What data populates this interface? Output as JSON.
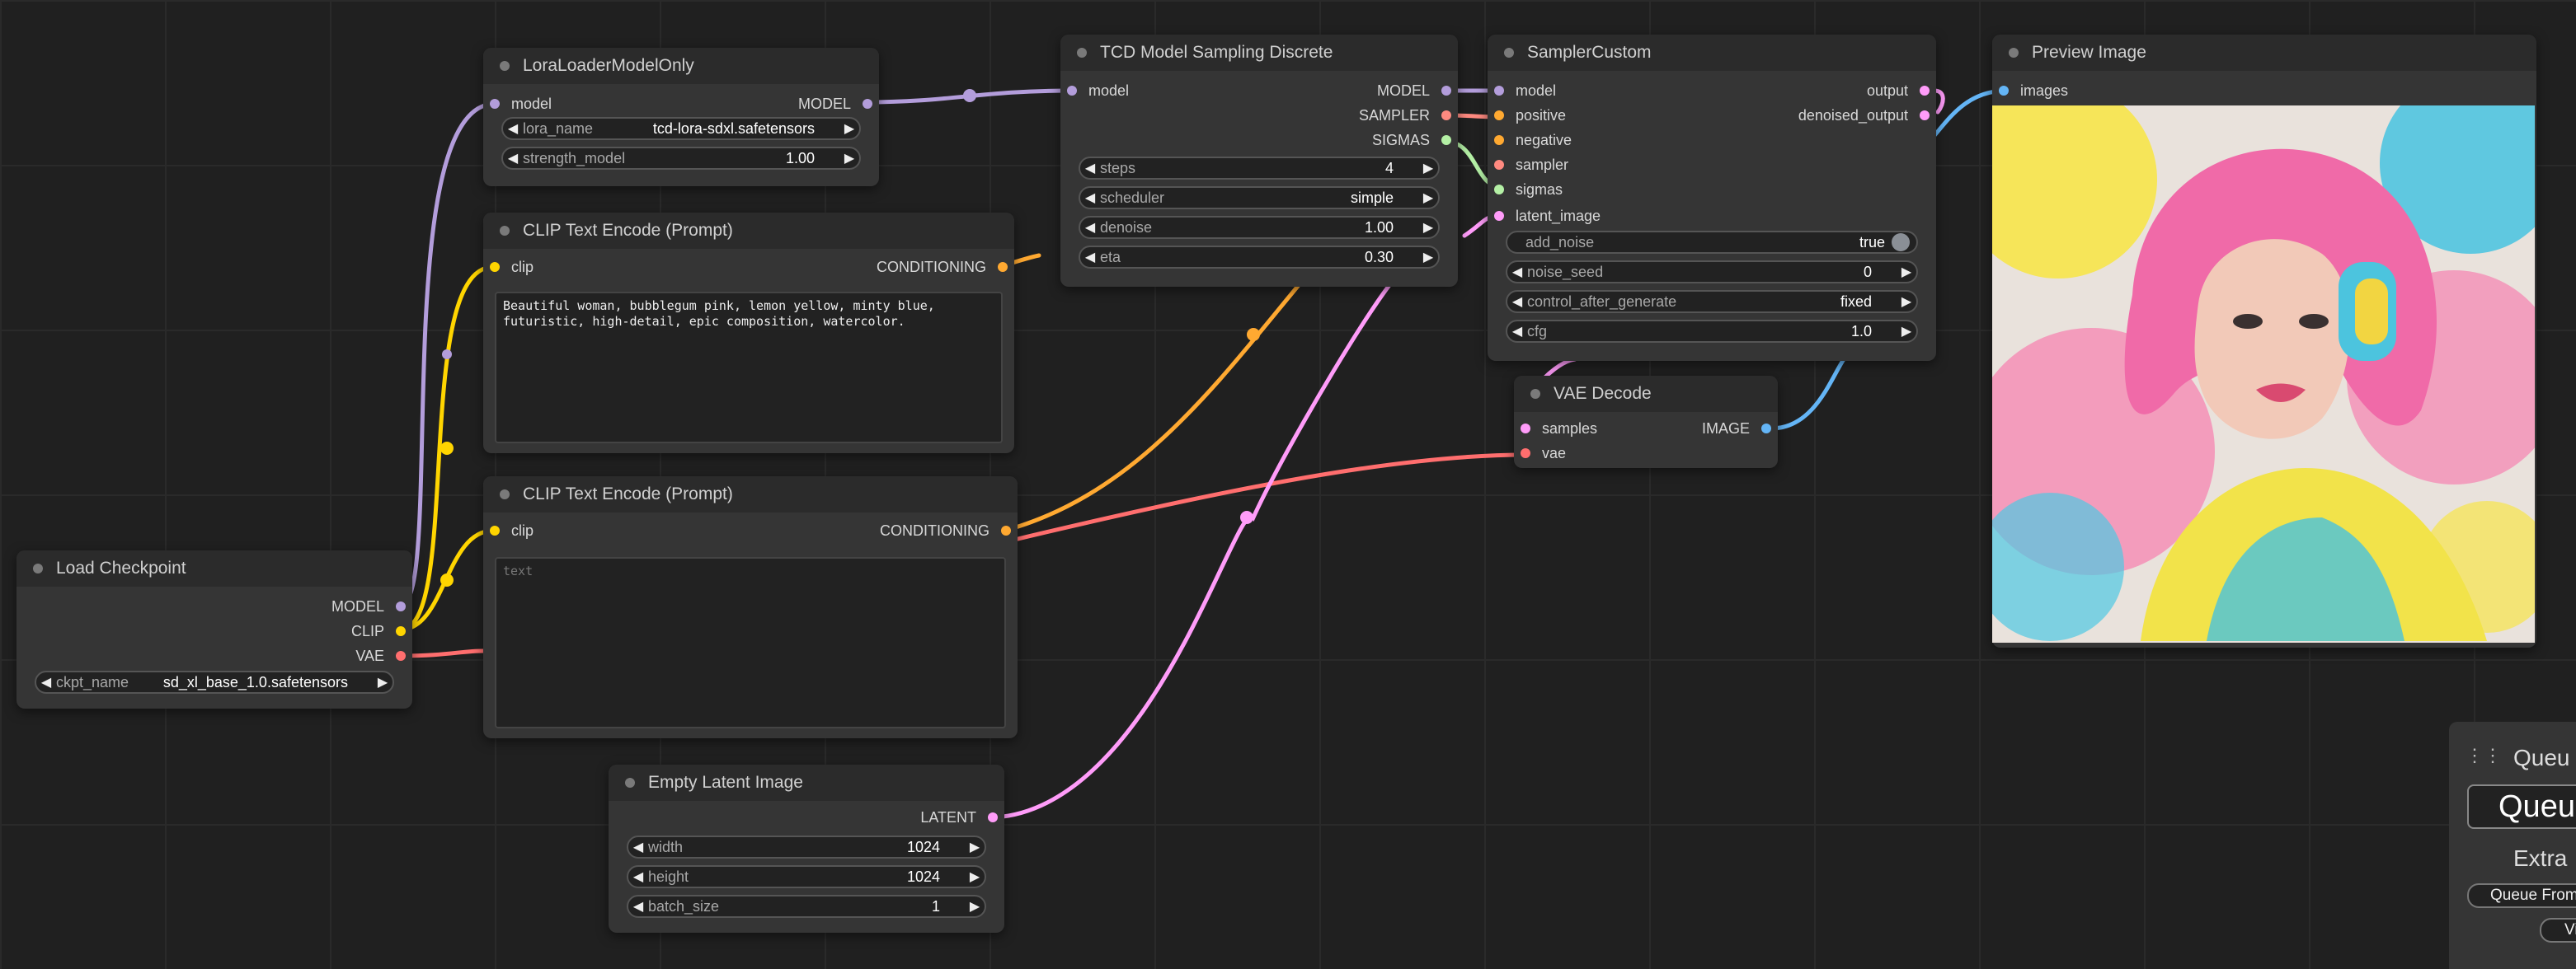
{
  "colors": {
    "model": "#b39ddb",
    "clip": "#ffd500",
    "vae": "#ff6e6e",
    "conditioning": "#ffa931",
    "latent": "#ff9cf9",
    "image": "#64b5f6",
    "sampler": "#ff8a80",
    "sigmas": "#b4f0a5"
  },
  "nodes": {
    "lora": {
      "title": "LoraLoaderModelOnly",
      "in_model": "model",
      "out_model": "MODEL",
      "w_lora": {
        "name": "lora_name",
        "value": "tcd-lora-sdxl.safetensors"
      },
      "w_strength": {
        "name": "strength_model",
        "value": "1.00"
      }
    },
    "clip1": {
      "title": "CLIP Text Encode (Prompt)",
      "in_clip": "clip",
      "out_cond": "CONDITIONING",
      "text": "Beautiful woman, bubblegum pink, lemon yellow, minty blue,\nfuturistic, high-detail, epic composition, watercolor."
    },
    "clip2": {
      "title": "CLIP Text Encode (Prompt)",
      "in_clip": "clip",
      "out_cond": "CONDITIONING",
      "placeholder": "text"
    },
    "ckpt": {
      "title": "Load Checkpoint",
      "out_model": "MODEL",
      "out_clip": "CLIP",
      "out_vae": "VAE",
      "w_ckpt": {
        "name": "ckpt_name",
        "value": "sd_xl_base_1.0.safetensors"
      }
    },
    "latent": {
      "title": "Empty Latent Image",
      "out_latent": "LATENT",
      "w_width": {
        "name": "width",
        "value": "1024"
      },
      "w_height": {
        "name": "height",
        "value": "1024"
      },
      "w_batch": {
        "name": "batch_size",
        "value": "1"
      }
    },
    "tcd": {
      "title": "TCD Model Sampling Discrete",
      "in_model": "model",
      "out_model": "MODEL",
      "out_sampler": "SAMPLER",
      "out_sigmas": "SIGMAS",
      "w_steps": {
        "name": "steps",
        "value": "4"
      },
      "w_scheduler": {
        "name": "scheduler",
        "value": "simple"
      },
      "w_denoise": {
        "name": "denoise",
        "value": "1.00"
      },
      "w_eta": {
        "name": "eta",
        "value": "0.30"
      }
    },
    "sampler": {
      "title": "SamplerCustom",
      "in_model": "model",
      "in_positive": "positive",
      "in_negative": "negative",
      "in_sampler": "sampler",
      "in_sigmas": "sigmas",
      "in_latent": "latent_image",
      "out_output": "output",
      "out_denoised": "denoised_output",
      "w_add_noise": {
        "name": "add_noise",
        "value": "true"
      },
      "w_seed": {
        "name": "noise_seed",
        "value": "0"
      },
      "w_cag": {
        "name": "control_after_generate",
        "value": "fixed"
      },
      "w_cfg": {
        "name": "cfg",
        "value": "1.0"
      }
    },
    "vae": {
      "title": "VAE Decode",
      "in_samples": "samples",
      "in_vae": "vae",
      "out_image": "IMAGE"
    },
    "preview": {
      "title": "Preview Image",
      "in_images": "images"
    }
  },
  "queue_panel": {
    "title": "Queu",
    "button": "Queu",
    "extra": "Extra",
    "queue_front": "Queue From",
    "view": "Vi"
  }
}
